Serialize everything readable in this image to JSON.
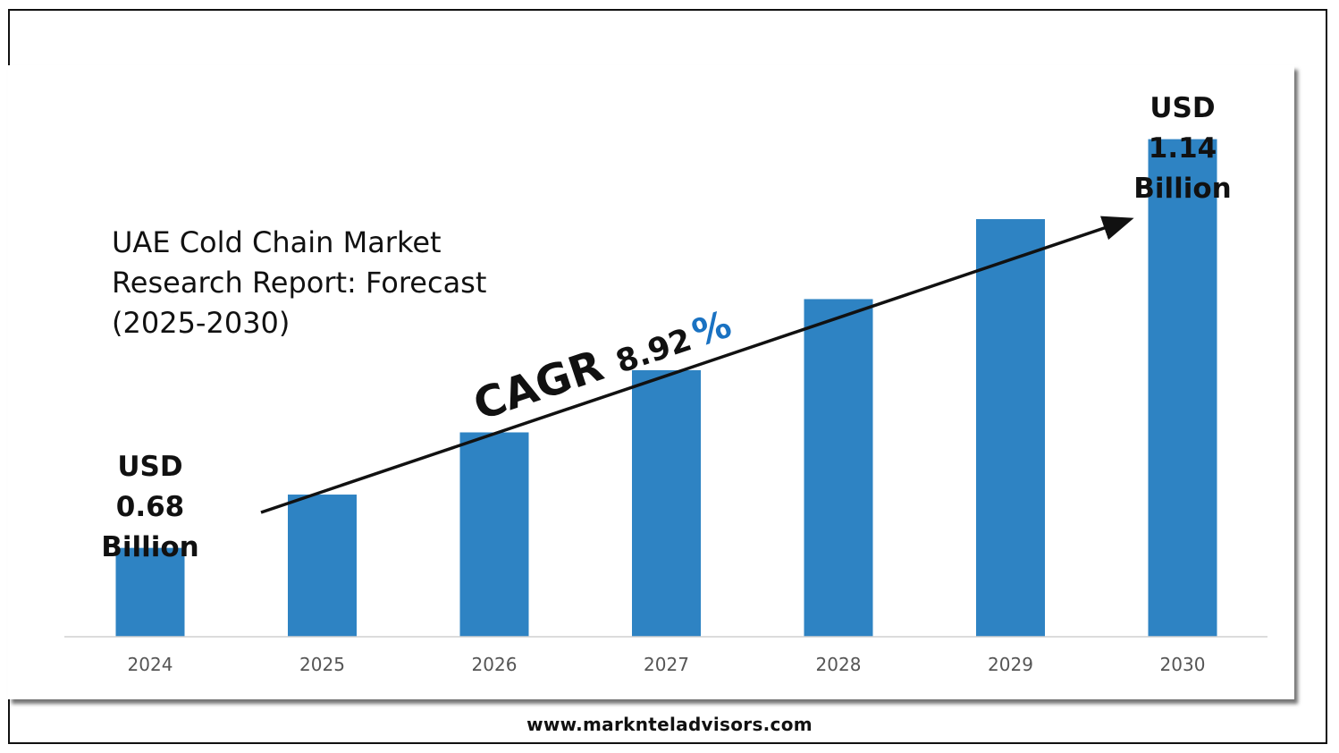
{
  "chart_data": {
    "type": "bar",
    "title_lines": [
      "UAE Cold Chain Market",
      "Research Report: Forecast",
      "(2025-2030)"
    ],
    "categories": [
      "2024",
      "2025",
      "2026",
      "2027",
      "2028",
      "2029",
      "2030"
    ],
    "values": [
      0.68,
      0.74,
      0.81,
      0.88,
      0.96,
      1.05,
      1.14
    ],
    "xlabel": "",
    "ylabel": "",
    "ylim": [
      0.58,
      1.2
    ],
    "grid": false,
    "legend": "none",
    "bar_color": "#2e83c3",
    "annotations": {
      "start_label": [
        "USD",
        "0.68",
        "Billion"
      ],
      "end_label": [
        "USD",
        "1.14",
        "Billion"
      ],
      "cagr_text": "CAGR",
      "cagr_number": "8.92",
      "cagr_percent": "%",
      "cagr_percent_color": "#1a72c2"
    }
  },
  "footer": {
    "url": "www.marknteladvisors.com"
  }
}
